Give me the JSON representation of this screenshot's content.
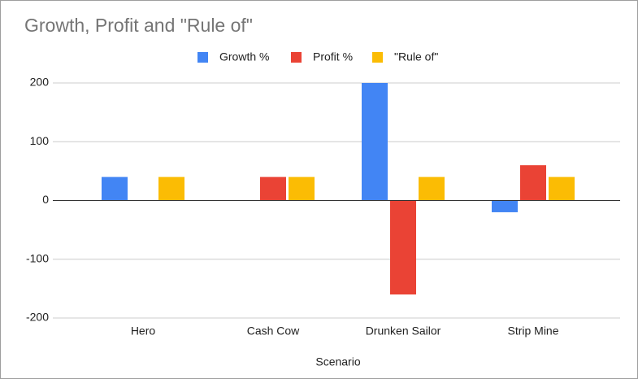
{
  "chart_data": {
    "type": "bar",
    "title": "Growth, Profit and \"Rule of\"",
    "x_label": "Scenario",
    "categories": [
      "Hero",
      "Cash Cow",
      "Drunken Sailor",
      "Strip Mine"
    ],
    "series": [
      {
        "name": "Growth %",
        "color": "#4285f4",
        "values": [
          40,
          0,
          200,
          -20
        ]
      },
      {
        "name": "Profit %",
        "color": "#ea4335",
        "values": [
          0,
          40,
          -160,
          60
        ]
      },
      {
        "name": "\"Rule of\"",
        "color": "#fbbc04",
        "values": [
          40,
          40,
          40,
          40
        ]
      }
    ],
    "ylim": [
      -200,
      200
    ],
    "yticks": [
      -200,
      -100,
      0,
      100,
      200
    ],
    "grid": true,
    "legend": "top"
  }
}
